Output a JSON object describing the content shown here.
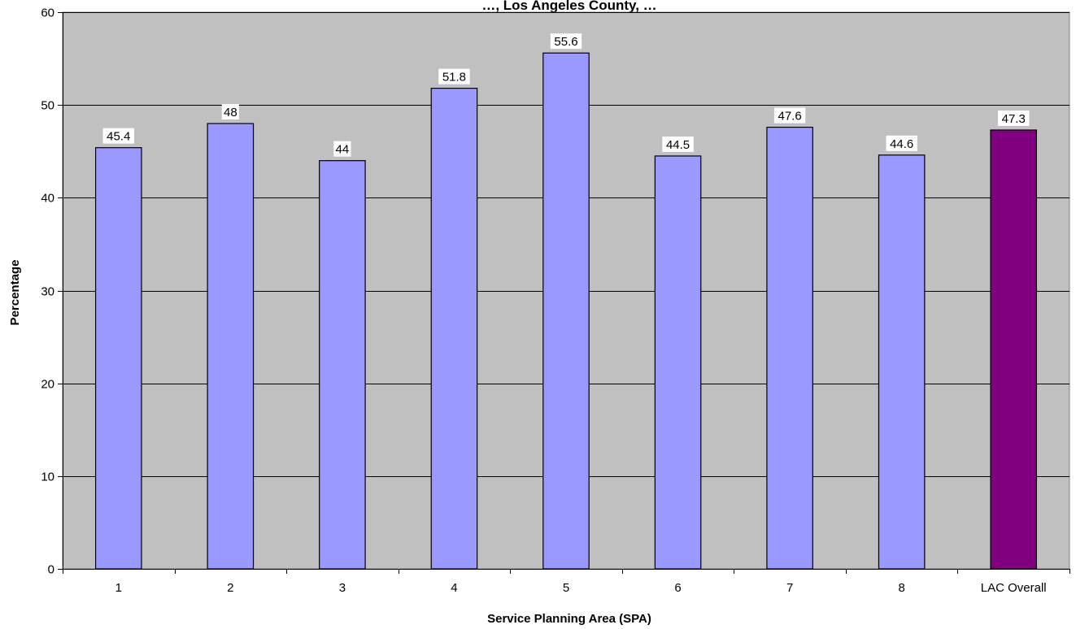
{
  "chart_data": {
    "type": "bar",
    "title": "…, Los Angeles County, …",
    "xlabel": "Service Planning Area (SPA)",
    "ylabel": "Percentage",
    "categories": [
      "1",
      "2",
      "3",
      "4",
      "5",
      "6",
      "7",
      "8",
      "LAC Overall"
    ],
    "values": [
      45.4,
      48,
      44,
      51.8,
      55.6,
      44.5,
      47.6,
      44.6,
      47.3
    ],
    "data_labels": [
      "45.4",
      "48",
      "44",
      "51.8",
      "55.6",
      "44.5",
      "47.6",
      "44.6",
      "47.3"
    ],
    "ylim": [
      0,
      60
    ],
    "yticks": [
      0,
      10,
      20,
      30,
      40,
      50,
      60
    ],
    "grid": true,
    "legend": "none",
    "colors": {
      "plot_background": "#c0c0c0",
      "bar": "#9999ff",
      "highlight_bar": "#800080",
      "highlight_category": "LAC Overall",
      "gridline": "#000000",
      "bar_outline": "#000000"
    }
  }
}
